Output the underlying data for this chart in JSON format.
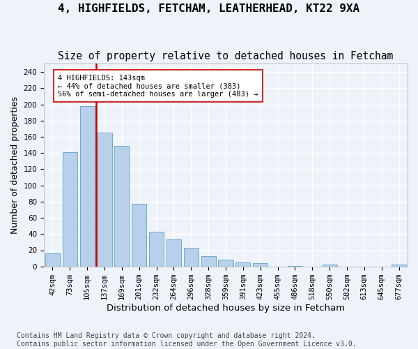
{
  "title1": "4, HIGHFIELDS, FETCHAM, LEATHERHEAD, KT22 9XA",
  "title2": "Size of property relative to detached houses in Fetcham",
  "xlabel": "Distribution of detached houses by size in Fetcham",
  "ylabel": "Number of detached properties",
  "categories": [
    "42sqm",
    "73sqm",
    "105sqm",
    "137sqm",
    "169sqm",
    "201sqm",
    "232sqm",
    "264sqm",
    "296sqm",
    "328sqm",
    "359sqm",
    "391sqm",
    "423sqm",
    "455sqm",
    "486sqm",
    "518sqm",
    "550sqm",
    "582sqm",
    "613sqm",
    "645sqm",
    "677sqm"
  ],
  "values": [
    16,
    141,
    198,
    165,
    149,
    77,
    43,
    33,
    23,
    13,
    8,
    5,
    4,
    0,
    1,
    0,
    2,
    0,
    0,
    0,
    2
  ],
  "bar_color": "#b8d0ea",
  "bar_edge_color": "#6aaad4",
  "vline_color": "#cc0000",
  "vline_pos": 2.5,
  "annotation_line1": "4 HIGHFIELDS: 143sqm",
  "annotation_line2": "← 44% of detached houses are smaller (383)",
  "annotation_line3": "56% of semi-detached houses are larger (483) →",
  "ann_box_edgecolor": "#cc0000",
  "ann_box_facecolor": "#ffffff",
  "ylim": [
    0,
    250
  ],
  "yticks": [
    0,
    20,
    40,
    60,
    80,
    100,
    120,
    140,
    160,
    180,
    200,
    220,
    240
  ],
  "footer": "Contains HM Land Registry data © Crown copyright and database right 2024.\nContains public sector information licensed under the Open Government Licence v3.0.",
  "bg_color": "#eef2f9",
  "grid_color": "#ffffff",
  "title1_fontsize": 11.5,
  "title2_fontsize": 10.5,
  "xlabel_fontsize": 9.5,
  "ylabel_fontsize": 9,
  "tick_fontsize": 7.5,
  "footer_fontsize": 7
}
